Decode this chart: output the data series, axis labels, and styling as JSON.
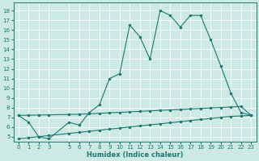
{
  "title": "",
  "xlabel": "Humidex (Indice chaleur)",
  "ylabel": "",
  "bg_color": "#cce9e4",
  "line_color": "#1a7a6e",
  "grid_color": "#ffffff",
  "ylim": [
    4.5,
    18.8
  ],
  "xlim": [
    -0.5,
    23.5
  ],
  "yticks": [
    5,
    6,
    7,
    8,
    9,
    10,
    11,
    12,
    13,
    14,
    15,
    16,
    17,
    18
  ],
  "xticks": [
    0,
    1,
    2,
    3,
    5,
    6,
    7,
    8,
    9,
    10,
    11,
    12,
    13,
    14,
    15,
    16,
    17,
    18,
    19,
    20,
    21,
    22,
    23
  ],
  "series": [
    {
      "x": [
        0,
        1,
        2,
        3,
        5,
        6,
        7,
        8,
        9,
        10,
        11,
        12,
        13,
        14,
        15,
        16,
        17,
        18,
        19,
        20,
        21,
        22,
        23
      ],
      "y": [
        7.2,
        6.5,
        5.0,
        4.8,
        6.5,
        6.2,
        7.5,
        8.3,
        11.0,
        11.5,
        16.5,
        15.3,
        13.0,
        18.0,
        17.5,
        16.3,
        17.5,
        17.5,
        15.0,
        12.3,
        9.5,
        7.5,
        7.2
      ]
    },
    {
      "x": [
        0,
        1,
        2,
        3,
        5,
        6,
        7,
        8,
        9,
        10,
        11,
        12,
        13,
        14,
        15,
        16,
        17,
        18,
        19,
        20,
        21,
        22,
        23
      ],
      "y": [
        7.2,
        7.22,
        7.24,
        7.26,
        7.3,
        7.32,
        7.37,
        7.42,
        7.47,
        7.52,
        7.57,
        7.62,
        7.67,
        7.72,
        7.77,
        7.82,
        7.87,
        7.92,
        7.97,
        8.02,
        8.07,
        8.12,
        7.2
      ]
    },
    {
      "x": [
        0,
        1,
        2,
        3,
        5,
        6,
        7,
        8,
        9,
        10,
        11,
        12,
        13,
        14,
        15,
        16,
        17,
        18,
        19,
        20,
        21,
        22,
        23
      ],
      "y": [
        4.8,
        4.91,
        5.02,
        5.13,
        5.35,
        5.46,
        5.57,
        5.68,
        5.79,
        5.9,
        6.01,
        6.12,
        6.23,
        6.34,
        6.45,
        6.56,
        6.67,
        6.78,
        6.89,
        7.0,
        7.1,
        7.15,
        7.2
      ]
    }
  ]
}
